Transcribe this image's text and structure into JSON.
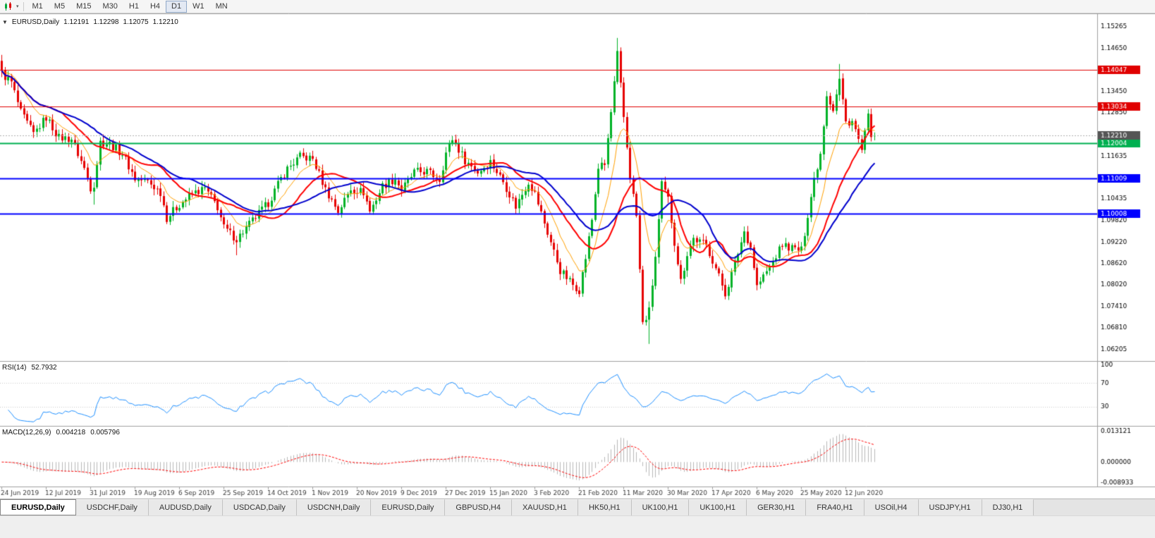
{
  "toolbar": {
    "caret_glyph": "▾",
    "timeframes": [
      "M1",
      "M5",
      "M15",
      "M30",
      "H1",
      "H4",
      "D1",
      "W1",
      "MN"
    ],
    "active_timeframe": "D1"
  },
  "chart": {
    "header": {
      "dropdown_glyph": "▼",
      "symbol": "EURUSD,Daily",
      "open": "1.12191",
      "high": "1.12298",
      "low": "1.12075",
      "close": "1.12210"
    },
    "rsi_label": {
      "name": "RSI(14)",
      "value": "52.7932"
    },
    "macd_label": {
      "name": "MACD(12,26,9)",
      "value_main": "0.004218",
      "value_signal": "0.005796"
    }
  },
  "tabs": [
    "EURUSD,Daily",
    "USDCHF,Daily",
    "AUDUSD,Daily",
    "USDCAD,Daily",
    "USDCNH,Daily",
    "EURUSD,Daily",
    "GBPUSD,H4",
    "XAUUSD,H1",
    "HK50,H1",
    "UK100,H1",
    "UK100,H1",
    "GER30,H1",
    "FRA40,H1",
    "USOil,H4",
    "USDJPY,H1",
    "DJ30,H1"
  ],
  "active_tab_index": 0,
  "chart_data": {
    "type": "candlestick",
    "symbol": "EURUSD",
    "timeframe": "Daily",
    "price_precision": 5,
    "bars": 276,
    "bar_spacing": 4.5,
    "price_axis": {
      "top": 1.1552,
      "bottom": 1.0588,
      "ticks": [
        1.15265,
        1.1465,
        1.1404,
        1.1345,
        1.1285,
        1.1224,
        1.11635,
        1.1103,
        1.10435,
        1.0982,
        1.0922,
        1.0862,
        1.0802,
        1.0741,
        1.0681,
        1.06205
      ]
    },
    "x_labels": [
      {
        "i": 0,
        "label": "24 Jun 2019"
      },
      {
        "i": 14,
        "label": "12 Jul 2019"
      },
      {
        "i": 28,
        "label": "31 Jul 2019"
      },
      {
        "i": 42,
        "label": "19 Aug 2019"
      },
      {
        "i": 56,
        "label": "6 Sep 2019"
      },
      {
        "i": 70,
        "label": "25 Sep 2019"
      },
      {
        "i": 84,
        "label": "14 Oct 2019"
      },
      {
        "i": 98,
        "label": "1 Nov 2019"
      },
      {
        "i": 112,
        "label": "20 Nov 2019"
      },
      {
        "i": 126,
        "label": "9 Dec 2019"
      },
      {
        "i": 140,
        "label": "27 Dec 2019"
      },
      {
        "i": 154,
        "label": "15 Jan 2020"
      },
      {
        "i": 168,
        "label": "3 Feb 2020"
      },
      {
        "i": 182,
        "label": "21 Feb 2020"
      },
      {
        "i": 196,
        "label": "11 Mar 2020"
      },
      {
        "i": 210,
        "label": "30 Mar 2020"
      },
      {
        "i": 224,
        "label": "17 Apr 2020"
      },
      {
        "i": 238,
        "label": "6 May 2020"
      },
      {
        "i": 252,
        "label": "25 May 2020"
      },
      {
        "i": 266,
        "label": "12 Jun 2020"
      }
    ],
    "close_anchors": [
      [
        0,
        1.1395
      ],
      [
        3,
        1.137
      ],
      [
        6,
        1.1285
      ],
      [
        10,
        1.1225
      ],
      [
        14,
        1.1272
      ],
      [
        18,
        1.1215
      ],
      [
        22,
        1.1212
      ],
      [
        26,
        1.1128
      ],
      [
        28,
        1.1075
      ],
      [
        29,
        1.1085
      ],
      [
        31,
        1.1203
      ],
      [
        34,
        1.1198
      ],
      [
        38,
        1.117
      ],
      [
        42,
        1.11
      ],
      [
        46,
        1.1092
      ],
      [
        50,
        1.1062
      ],
      [
        52,
        1.099
      ],
      [
        56,
        1.1028
      ],
      [
        60,
        1.1058
      ],
      [
        64,
        1.1072
      ],
      [
        68,
        1.102
      ],
      [
        70,
        1.0962
      ],
      [
        74,
        1.093
      ],
      [
        78,
        1.0972
      ],
      [
        84,
        1.1032
      ],
      [
        88,
        1.11
      ],
      [
        90,
        1.1128
      ],
      [
        94,
        1.1162
      ],
      [
        98,
        1.1155
      ],
      [
        102,
        1.107
      ],
      [
        106,
        1.1008
      ],
      [
        110,
        1.1072
      ],
      [
        114,
        1.1062
      ],
      [
        116,
        1.1008
      ],
      [
        120,
        1.108
      ],
      [
        124,
        1.11
      ],
      [
        126,
        1.1068
      ],
      [
        130,
        1.1118
      ],
      [
        134,
        1.112
      ],
      [
        138,
        1.1098
      ],
      [
        140,
        1.1172
      ],
      [
        142,
        1.1212
      ],
      [
        146,
        1.1152
      ],
      [
        150,
        1.1118
      ],
      [
        154,
        1.1148
      ],
      [
        158,
        1.1092
      ],
      [
        162,
        1.1022
      ],
      [
        166,
        1.1092
      ],
      [
        168,
        1.1058
      ],
      [
        172,
        1.0948
      ],
      [
        176,
        1.0842
      ],
      [
        180,
        1.0802
      ],
      [
        182,
        1.0788
      ],
      [
        184,
        1.0878
      ],
      [
        186,
        1.0985
      ],
      [
        188,
        1.1132
      ],
      [
        190,
        1.1138
      ],
      [
        192,
        1.1285
      ],
      [
        194,
        1.1448
      ],
      [
        196,
        1.1272
      ],
      [
        198,
        1.1108
      ],
      [
        200,
        1.0995
      ],
      [
        202,
        1.0692
      ],
      [
        204,
        1.0728
      ],
      [
        206,
        1.088
      ],
      [
        208,
        1.1082
      ],
      [
        210,
        1.1042
      ],
      [
        212,
        1.0922
      ],
      [
        214,
        1.0812
      ],
      [
        216,
        1.089
      ],
      [
        218,
        1.0932
      ],
      [
        222,
        1.0912
      ],
      [
        224,
        1.0872
      ],
      [
        228,
        1.0778
      ],
      [
        230,
        1.0832
      ],
      [
        234,
        1.0952
      ],
      [
        236,
        1.0908
      ],
      [
        238,
        1.0798
      ],
      [
        242,
        1.0852
      ],
      [
        246,
        1.0915
      ],
      [
        250,
        1.0902
      ],
      [
        252,
        1.0898
      ],
      [
        254,
        1.1
      ],
      [
        256,
        1.11
      ],
      [
        258,
        1.1172
      ],
      [
        260,
        1.1338
      ],
      [
        262,
        1.1295
      ],
      [
        264,
        1.1378
      ],
      [
        266,
        1.1258
      ],
      [
        268,
        1.1262
      ],
      [
        270,
        1.1208
      ],
      [
        271,
        1.1178
      ],
      [
        273,
        1.1272
      ],
      [
        274,
        1.1228
      ],
      [
        275,
        1.1221
      ]
    ],
    "wick_overrides": [
      {
        "i": 29,
        "low": 1.1027
      },
      {
        "i": 74,
        "low": 1.0885
      },
      {
        "i": 194,
        "high": 1.1495
      },
      {
        "i": 204,
        "low": 1.0636
      },
      {
        "i": 264,
        "high": 1.1422
      }
    ],
    "last_bar": {
      "o": 1.12191,
      "h": 1.12298,
      "l": 1.12075,
      "c": 1.1221
    },
    "levels": [
      {
        "price": 1.14047,
        "label": "1.14047",
        "color": "#e00000",
        "width": 1
      },
      {
        "price": 1.13034,
        "label": "1.13034",
        "color": "#e00000",
        "width": 1
      },
      {
        "price": 1.12004,
        "label": "1.12004",
        "color": "#00b050",
        "width": 2
      },
      {
        "price": 1.11009,
        "label": "1.11009",
        "color": "#0000ff",
        "width": 2
      },
      {
        "price": 1.10008,
        "label": "1.10008",
        "color": "#0000ff",
        "width": 2
      }
    ],
    "bid_line": {
      "price": 1.1221,
      "label": "1.12210",
      "line_color": "#b0b0b0",
      "label_color": "#555555"
    },
    "moving_averages": [
      {
        "kind": "ema",
        "period": 10,
        "color": "#ffa000",
        "width": 1
      },
      {
        "kind": "sma",
        "period": 20,
        "color": "#ff0000",
        "width": 2
      },
      {
        "kind": "sma",
        "period": 30,
        "color": "#0000cd",
        "width": 2
      }
    ],
    "rsi": {
      "period": 14,
      "color": "#1e90ff",
      "levels": [
        70,
        30
      ],
      "scale_ticks": [
        100,
        70,
        30
      ]
    },
    "macd": {
      "fast": 12,
      "slow": 26,
      "signal_period": 9,
      "hist_color": "#b8b8b8",
      "signal_color": "#ff0000",
      "axis_max": 0.014,
      "axis_min": -0.0096,
      "scale_ticks": [
        {
          "v": 0.013121,
          "label": "0.013121"
        },
        {
          "v": 0,
          "label": "0.000000"
        },
        {
          "v": -0.008933,
          "label": "-0.008933"
        }
      ]
    },
    "colors": {
      "up": "#00b226",
      "down": "#e60000",
      "background": "#ffffff",
      "axis_text": "#000000",
      "date_text": "#3c3c3c",
      "separator": "#a0a0a0",
      "grid_dotted": "#c8c8c8"
    }
  }
}
